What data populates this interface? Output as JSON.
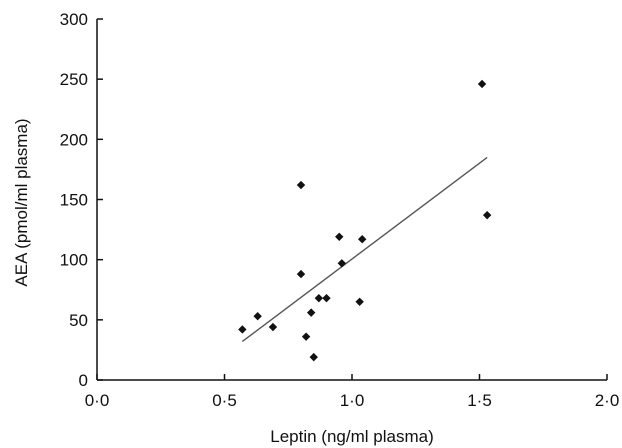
{
  "chart_data": {
    "type": "scatter",
    "xlabel": "Leptin (ng/ml plasma)",
    "ylabel": "AEA (pmol/ml plasma)",
    "xlim": [
      0,
      2
    ],
    "ylim": [
      0,
      300
    ],
    "x_ticks": [
      0,
      0.5,
      1,
      1.5,
      2
    ],
    "x_tick_labels": [
      "0·0",
      "0·5",
      "1·0",
      "1·5",
      "2·0"
    ],
    "y_ticks": [
      0,
      50,
      100,
      150,
      200,
      250,
      300
    ],
    "y_tick_labels": [
      "0",
      "50",
      "100",
      "150",
      "200",
      "250",
      "300"
    ],
    "points": [
      {
        "x": 0.57,
        "y": 42
      },
      {
        "x": 0.63,
        "y": 53
      },
      {
        "x": 0.69,
        "y": 44
      },
      {
        "x": 0.8,
        "y": 162
      },
      {
        "x": 0.8,
        "y": 88
      },
      {
        "x": 0.82,
        "y": 36
      },
      {
        "x": 0.84,
        "y": 56
      },
      {
        "x": 0.85,
        "y": 19
      },
      {
        "x": 0.87,
        "y": 68
      },
      {
        "x": 0.9,
        "y": 68
      },
      {
        "x": 0.95,
        "y": 119
      },
      {
        "x": 0.96,
        "y": 97
      },
      {
        "x": 1.03,
        "y": 65
      },
      {
        "x": 1.04,
        "y": 117
      },
      {
        "x": 1.51,
        "y": 246
      },
      {
        "x": 1.53,
        "y": 137
      }
    ],
    "trendline": {
      "x": [
        0.57,
        1.53
      ],
      "y": [
        32,
        185
      ]
    },
    "grid": false,
    "legend": "none"
  }
}
